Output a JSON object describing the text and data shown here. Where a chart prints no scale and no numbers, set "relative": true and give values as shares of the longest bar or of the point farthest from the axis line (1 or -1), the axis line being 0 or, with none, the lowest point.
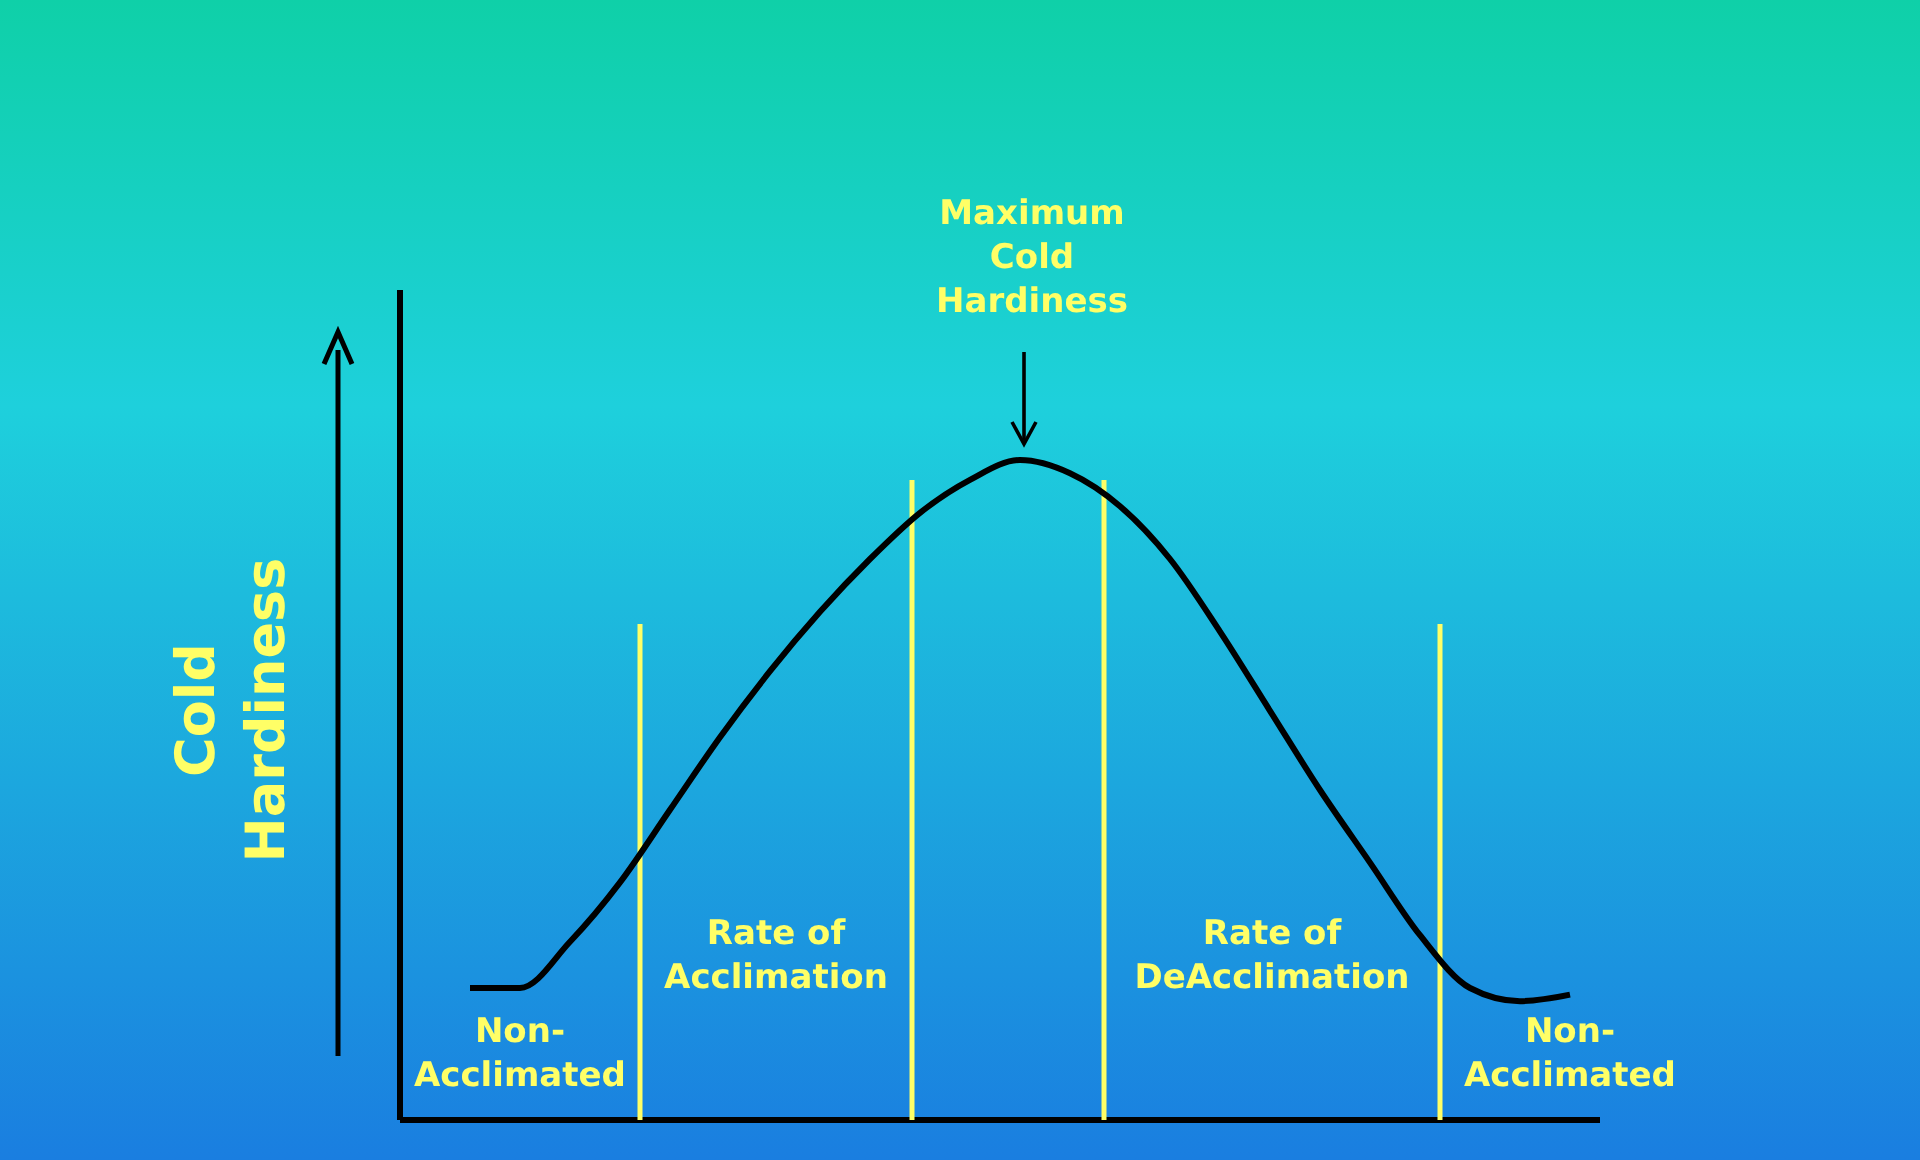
{
  "chart_data": {
    "type": "line",
    "relative": true,
    "ylabel": "Cold\nHardiness",
    "categories": [
      null,
      null,
      null,
      null,
      null,
      null,
      null,
      null,
      null,
      null,
      null,
      null,
      null,
      null,
      null,
      null,
      null,
      null,
      null,
      null,
      null,
      null,
      null
    ],
    "series": [
      {
        "color": "#000000",
        "values": [
          0.2,
          0.2,
          0.27,
          0.36,
          0.47,
          0.58,
          0.68,
          0.77,
          0.85,
          0.92,
          0.97,
          1.0,
          0.98,
          0.93,
          0.85,
          0.74,
          0.62,
          0.5,
          0.39,
          0.28,
          0.2,
          0.18,
          0.19
        ]
      }
    ],
    "annotations": [
      "Maximum\nCold\nHardiness",
      "Non-\nAcclimated",
      "Rate of\nAcclimation",
      "Rate of\nDeAcclimation",
      "Non-\nAcclimated"
    ],
    "marker": "none",
    "line_style": "solid"
  }
}
